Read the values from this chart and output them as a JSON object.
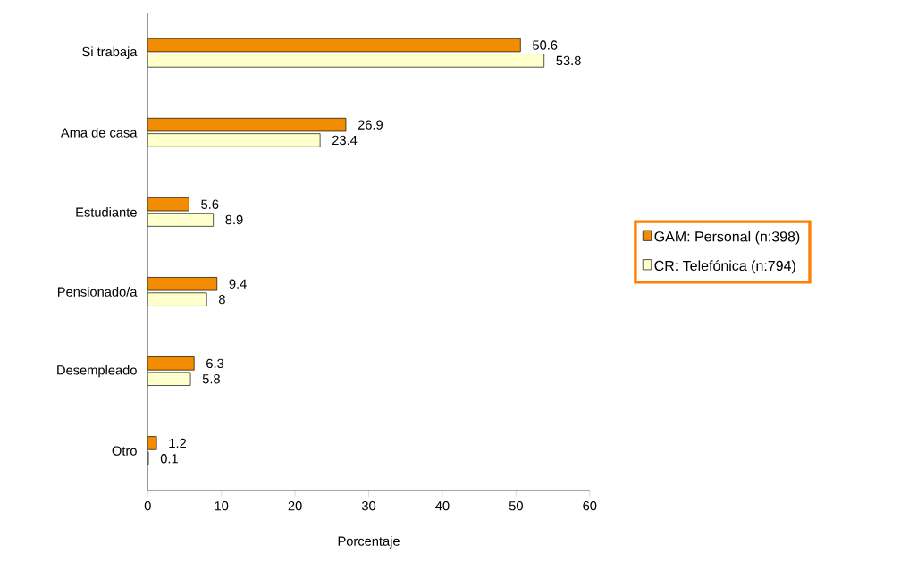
{
  "chart_data": {
    "type": "bar",
    "orientation": "horizontal",
    "xlabel": "Porcentaje",
    "categories": [
      "Si trabaja",
      "Ama de casa",
      "Estudiante",
      "Pensionado/a",
      "Desempleado",
      "Otro"
    ],
    "series": [
      {
        "name": "GAM: Personal (n:398)",
        "color": "#f28c00",
        "values": [
          50.6,
          26.9,
          5.6,
          9.4,
          6.3,
          1.2
        ]
      },
      {
        "name": "CR: Telefónica (n:794)",
        "color": "#ffffcc",
        "values": [
          53.8,
          23.4,
          8.9,
          8,
          5.8,
          0.1
        ]
      }
    ],
    "xlim": [
      0,
      60
    ],
    "xticks": [
      0,
      10,
      20,
      30,
      40,
      50,
      60
    ],
    "data_labels": true,
    "legend": "right",
    "grid": false
  }
}
